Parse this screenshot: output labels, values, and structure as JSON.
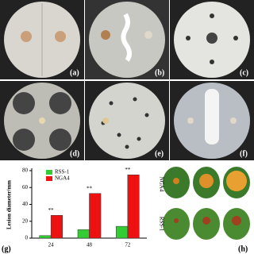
{
  "figure": {
    "panels": [
      "(a)",
      "(b)",
      "(c)",
      "(d)",
      "(e)",
      "(f)",
      "(g)",
      "(h)"
    ],
    "leaf_rows": [
      "NGA4",
      "RSS-1"
    ]
  },
  "chart_data": {
    "type": "bar",
    "y_label": "Lesion diameter/mm",
    "categories": [
      "24",
      "48",
      "72"
    ],
    "series": [
      {
        "name": "RSS-1",
        "color": "#33cc33",
        "values": [
          3,
          10,
          14
        ]
      },
      {
        "name": "NGA4",
        "color": "#ee1111",
        "values": [
          27,
          53,
          75
        ]
      }
    ],
    "annotations": [
      "**",
      "**",
      "**"
    ],
    "ylim": [
      0,
      80
    ],
    "yticks": [
      0,
      20,
      40,
      60,
      80
    ]
  }
}
